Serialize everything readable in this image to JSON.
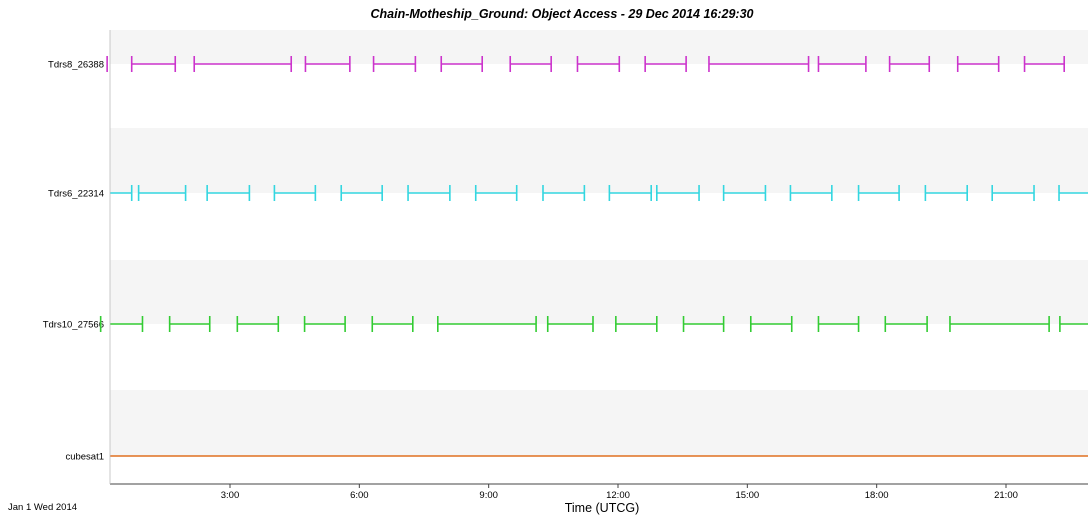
{
  "chart_data": {
    "type": "timeline",
    "title": "Chain-Motheship_Ground:  Object Access - 29 Dec 2014 16:29:30",
    "xlabel": "Time (UTCG)",
    "start_date_label": "Jan 1 Wed 2014",
    "xlim_hours": [
      0.0,
      23.9
    ],
    "xticks": [
      {
        "hour": 3,
        "label": "3:00"
      },
      {
        "hour": 6,
        "label": "6:00"
      },
      {
        "hour": 9,
        "label": "9:00"
      },
      {
        "hour": 12,
        "label": "12:00"
      },
      {
        "hour": 15,
        "label": "15:00"
      },
      {
        "hour": 18,
        "label": "18:00"
      },
      {
        "hour": 21,
        "label": "21:00"
      }
    ],
    "grid": "alternating horizontal bands",
    "series": [
      {
        "name": "Tdrs8_26388",
        "color": "#cc33cc",
        "intervals": [
          [
            0.15,
            0.15
          ],
          [
            0.72,
            1.73
          ],
          [
            2.17,
            4.42
          ],
          [
            4.75,
            5.78
          ],
          [
            6.33,
            7.3
          ],
          [
            7.9,
            8.85
          ],
          [
            9.5,
            10.45
          ],
          [
            11.06,
            12.03
          ],
          [
            12.63,
            13.58
          ],
          [
            14.11,
            16.42
          ],
          [
            16.65,
            17.75
          ],
          [
            18.3,
            19.22
          ],
          [
            19.88,
            20.83
          ],
          [
            21.43,
            22.35
          ]
        ]
      },
      {
        "name": "Tdrs6_22314",
        "color": "#33d6e0",
        "intervals": [
          [
            0.0,
            0.72
          ],
          [
            0.88,
            1.97
          ],
          [
            2.47,
            3.45
          ],
          [
            4.03,
            4.98
          ],
          [
            5.58,
            6.53
          ],
          [
            7.13,
            8.1
          ],
          [
            8.7,
            9.65
          ],
          [
            10.26,
            11.22
          ],
          [
            11.8,
            12.77
          ],
          [
            12.9,
            13.88
          ],
          [
            14.45,
            15.42
          ],
          [
            16.0,
            16.96
          ],
          [
            17.58,
            18.52
          ],
          [
            19.13,
            20.1
          ],
          [
            20.68,
            21.65
          ],
          [
            22.23,
            23.9
          ]
        ]
      },
      {
        "name": "Tdrs10_27566",
        "color": "#33cc33",
        "intervals": [
          [
            0.0,
            0.0
          ],
          [
            0.0,
            0.97
          ],
          [
            1.6,
            2.53
          ],
          [
            3.17,
            4.12
          ],
          [
            4.73,
            5.67
          ],
          [
            6.3,
            7.24
          ],
          [
            7.82,
            10.1
          ],
          [
            10.37,
            11.42
          ],
          [
            11.95,
            12.9
          ],
          [
            13.52,
            14.45
          ],
          [
            15.08,
            16.03
          ],
          [
            16.65,
            17.58
          ],
          [
            18.2,
            19.17
          ],
          [
            19.7,
            22.0
          ],
          [
            22.25,
            23.9
          ]
        ]
      },
      {
        "name": "cubesat1",
        "color": "#e07020",
        "intervals": [
          [
            0.0,
            23.9
          ]
        ]
      }
    ]
  }
}
